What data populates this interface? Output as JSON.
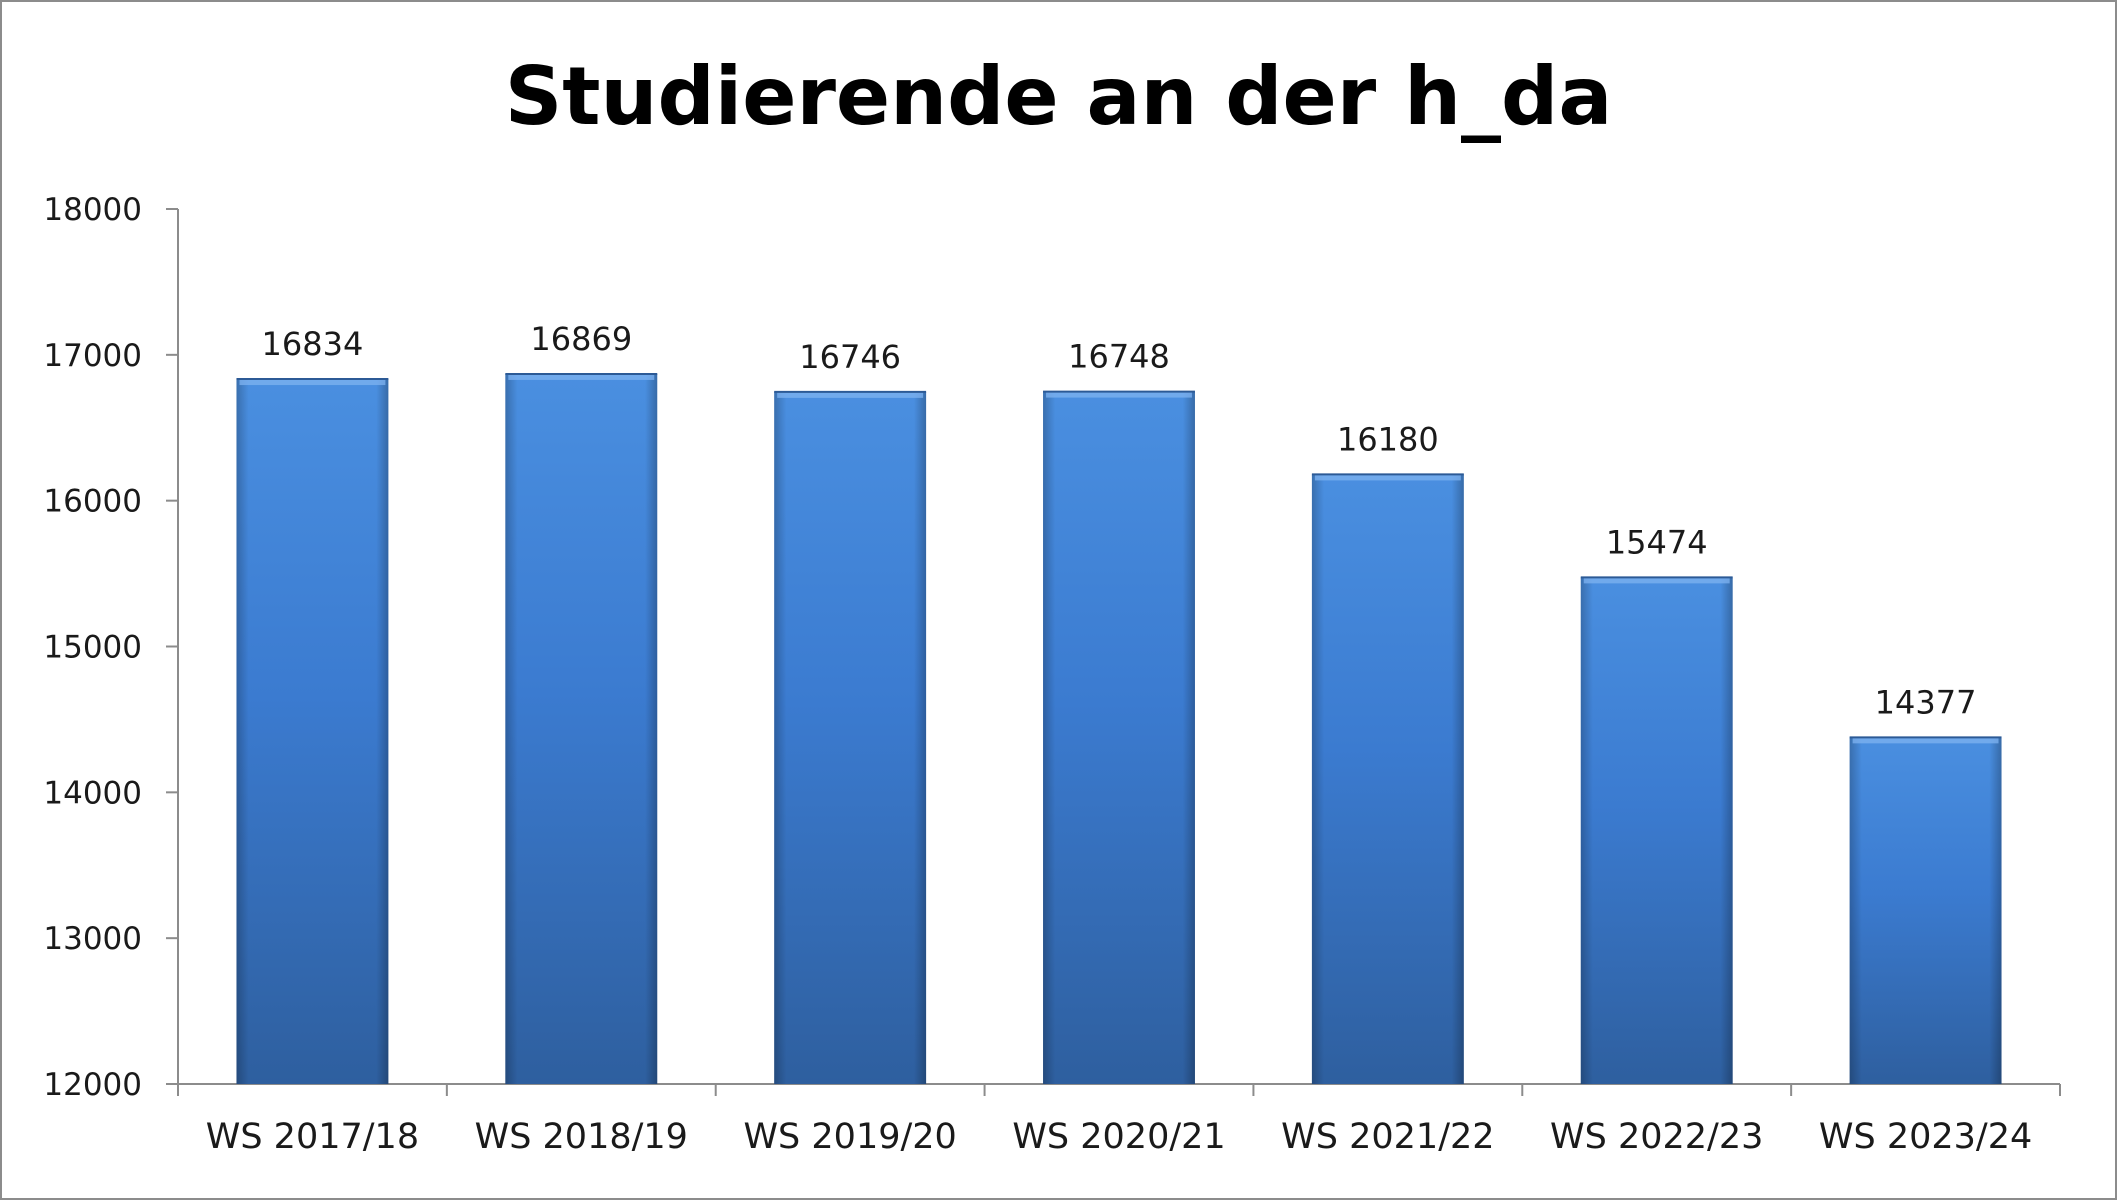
{
  "chart_data": {
    "type": "bar",
    "title": "Studierende an der h_da",
    "categories": [
      "WS 2017/18",
      "WS 2018/19",
      "WS 2019/20",
      "WS 2020/21",
      "WS 2021/22",
      "WS 2022/23",
      "WS 2023/24"
    ],
    "values": [
      16834,
      16869,
      16746,
      16748,
      16180,
      15474,
      14377
    ],
    "data_labels": [
      "16834",
      "16869",
      "16746",
      "16748",
      "16180",
      "15474",
      "14377"
    ],
    "ylim": [
      12000,
      18000
    ],
    "y_ticks": [
      12000,
      13000,
      14000,
      15000,
      16000,
      17000,
      18000
    ],
    "y_tick_labels": [
      "12000",
      "13000",
      "14000",
      "15000",
      "16000",
      "17000",
      "18000"
    ],
    "xlabel": "",
    "ylabel": "",
    "grid": false,
    "legend": "none",
    "colors": {
      "bar_top": "#4a8fe0",
      "bar_mid": "#3b7bd0",
      "bar_bottom": "#2e5f9f",
      "axis": "#8c8c8c"
    }
  }
}
